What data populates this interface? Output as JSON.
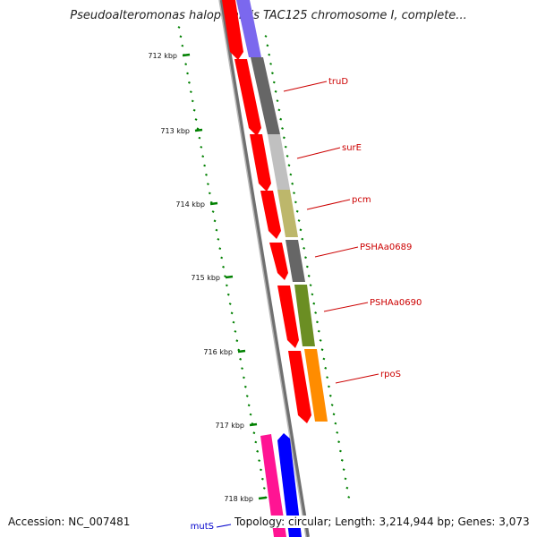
{
  "title": "Pseudoalteromonas haloplanktis TAC125 chromosome I, complete...",
  "footer": {
    "accession": "Accession: NC_007481",
    "summary": "Topology: circular; Length: 3,214,944 bp; Genes: 3,073"
  },
  "ticks": [
    {
      "label": "712 kbp"
    },
    {
      "label": "713 kbp"
    },
    {
      "label": "714 kbp"
    },
    {
      "label": "715 kbp"
    },
    {
      "label": "716 kbp"
    },
    {
      "label": "717 kbp"
    },
    {
      "label": "718 kbp"
    }
  ],
  "genes": [
    {
      "name": "truD",
      "color": "#666666"
    },
    {
      "name": "surE",
      "color": "#c0c0c0"
    },
    {
      "name": "pcm",
      "color": "#bdb76b"
    },
    {
      "name": "PSHAa0689",
      "color": "#666666"
    },
    {
      "name": "PSHAa0690",
      "color": "#6b8e23"
    },
    {
      "name": "rpoS",
      "color": "#ff8c00"
    },
    {
      "name": "mutS",
      "color": "#0000ff"
    }
  ],
  "colors": {
    "cds_strand": "#ff0000",
    "tick": "#008000",
    "backbone": "#808080",
    "pink_gene": "#ff1493",
    "purple_gene": "#7b68ee"
  }
}
